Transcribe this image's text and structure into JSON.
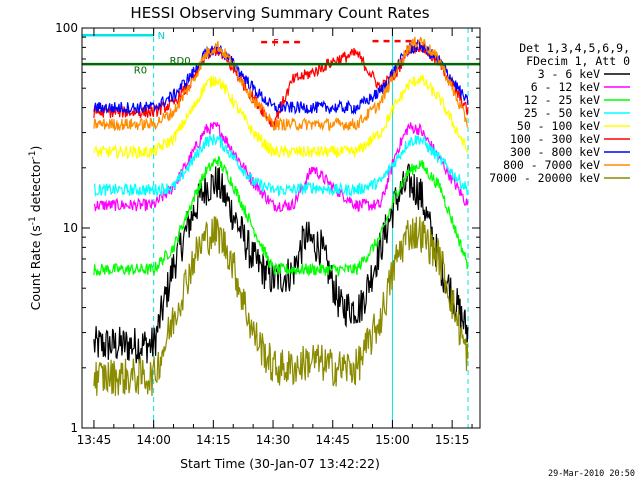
{
  "chart_data": {
    "type": "line",
    "title": "HESSI Observing Summary Count Rates",
    "xlabel": "Start Time (30-Jan-07 13:42:22)",
    "ylabel_main": "Count Rate (s",
    "ylabel_sup1": "-1",
    "ylabel_mid": " detector",
    "ylabel_sup2": "-1",
    "ylabel_end": ")",
    "yscale": "log",
    "ylim": [
      1,
      100
    ],
    "xlim": [
      -3,
      97
    ],
    "x_ticks": [
      {
        "pos": 0,
        "label": "13:45"
      },
      {
        "pos": 15,
        "label": "14:00"
      },
      {
        "pos": 30,
        "label": "14:15"
      },
      {
        "pos": 45,
        "label": "14:30"
      },
      {
        "pos": 60,
        "label": "14:45"
      },
      {
        "pos": 75,
        "label": "15:00"
      },
      {
        "pos": 90,
        "label": "15:15"
      }
    ],
    "y_ticks": [
      {
        "value": 1,
        "label": "1"
      },
      {
        "value": 10,
        "label": "10"
      },
      {
        "value": 100,
        "label": "100"
      }
    ],
    "legend_header": [
      "Det 1,3,4,5,6,9,",
      "FDecim 1, Att 0"
    ],
    "series": [
      {
        "name": "3 - 6 keV",
        "color": "#000000",
        "x": [
          0,
          15,
          20,
          25,
          28,
          31,
          34,
          40,
          45,
          50,
          53,
          57,
          62,
          67,
          72,
          76,
          79,
          82,
          87,
          94
        ],
        "y": [
          2.6,
          2.6,
          6.5,
          12,
          16,
          17,
          13,
          7,
          5.5,
          6,
          9,
          8,
          4,
          4,
          8,
          14,
          17,
          15,
          6.5,
          3
        ]
      },
      {
        "name": "6 - 12 keV",
        "color": "#ff00ff",
        "x": [
          0,
          15,
          20,
          25,
          28,
          31,
          34,
          40,
          45,
          50,
          55,
          60,
          66,
          72,
          76,
          79,
          82,
          87,
          94
        ],
        "y": [
          13,
          13,
          16,
          24,
          31,
          32,
          26,
          17,
          13,
          13,
          20,
          16,
          13,
          13,
          24,
          32,
          31,
          22,
          13
        ]
      },
      {
        "name": "12 - 25 keV",
        "color": "#00ff00",
        "x": [
          0,
          15,
          20,
          25,
          28,
          31,
          34,
          40,
          45,
          50,
          55,
          60,
          66,
          72,
          76,
          79,
          82,
          87,
          94
        ],
        "y": [
          6.2,
          6.2,
          8,
          14,
          19,
          22,
          18,
          10,
          6.2,
          6.2,
          6.2,
          6.2,
          6.2,
          9,
          15,
          19,
          21,
          16,
          6.5
        ]
      },
      {
        "name": "25 - 50 keV",
        "color": "#00ffff",
        "x": [
          0,
          15,
          20,
          25,
          28,
          31,
          34,
          40,
          45,
          50,
          55,
          60,
          66,
          72,
          76,
          79,
          82,
          87,
          94
        ],
        "y": [
          15.5,
          15.5,
          16,
          22,
          27,
          28,
          24,
          17,
          15.5,
          15.5,
          16,
          15.5,
          15.5,
          17,
          22,
          27,
          28,
          22,
          15.5
        ]
      },
      {
        "name": "50 - 100 keV",
        "color": "#ffff00",
        "x": [
          0,
          15,
          20,
          25,
          28,
          31,
          34,
          40,
          45,
          50,
          55,
          60,
          66,
          72,
          76,
          79,
          82,
          87,
          94
        ],
        "y": [
          24,
          24,
          28,
          40,
          52,
          56,
          46,
          30,
          24,
          24,
          24,
          24,
          24,
          30,
          42,
          52,
          56,
          44,
          24
        ]
      },
      {
        "name": "100 - 300 keV",
        "color": "#ff0000",
        "x": [
          0,
          15,
          20,
          25,
          28,
          31,
          34,
          40,
          45,
          50,
          55,
          60,
          66,
          72,
          76,
          79,
          82,
          87,
          94
        ],
        "y": [
          38,
          38,
          42,
          55,
          72,
          78,
          66,
          45,
          33,
          55,
          60,
          68,
          75,
          50,
          60,
          78,
          82,
          66,
          38
        ]
      },
      {
        "name": "300 - 800 keV",
        "color": "#0000ff",
        "x": [
          0,
          15,
          20,
          25,
          28,
          31,
          34,
          40,
          45,
          50,
          55,
          60,
          66,
          72,
          76,
          79,
          82,
          87,
          94
        ],
        "y": [
          40,
          40,
          46,
          60,
          74,
          80,
          70,
          50,
          40,
          40,
          40,
          40,
          40,
          48,
          64,
          78,
          82,
          68,
          42
        ]
      },
      {
        "name": "800 - 7000 keV",
        "color": "#ff8c00",
        "x": [
          0,
          15,
          20,
          25,
          28,
          31,
          34,
          40,
          45,
          50,
          55,
          60,
          66,
          72,
          76,
          79,
          82,
          87,
          94
        ],
        "y": [
          33,
          33,
          38,
          55,
          74,
          82,
          70,
          44,
          33,
          33,
          33,
          33,
          33,
          42,
          62,
          80,
          88,
          68,
          33
        ]
      },
      {
        "name": "7000 - 20000 keV",
        "color": "#8b8b00",
        "x": [
          0,
          15,
          20,
          25,
          28,
          31,
          34,
          40,
          45,
          50,
          55,
          60,
          66,
          72,
          76,
          79,
          82,
          87,
          94
        ],
        "y": [
          1.8,
          1.8,
          3.5,
          7,
          9,
          9.5,
          7.5,
          3,
          2,
          2,
          2.2,
          2,
          2,
          3.5,
          7,
          9.5,
          9.5,
          7,
          2.2
        ]
      }
    ],
    "annotations": [
      {
        "text": "N",
        "color": "#00cccc",
        "x": 15,
        "y": 92
      },
      {
        "text": "RD0",
        "color": "#006600",
        "x": 18,
        "y": 69
      },
      {
        "text": "R0",
        "color": "#006600",
        "x": 9,
        "y": 62
      },
      {
        "text": "F",
        "color": "#ff0000",
        "x": 44,
        "y": 85
      }
    ],
    "grid": false
  },
  "footer_timestamp": "29-Mar-2010 20:50"
}
